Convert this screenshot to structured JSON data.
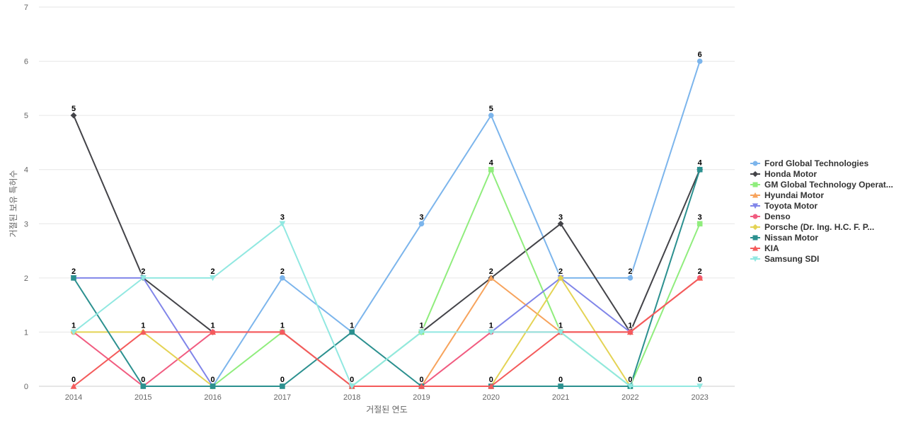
{
  "chart_data": {
    "type": "line",
    "title": "",
    "xlabel": "거절된 연도",
    "ylabel": "거절된 보유 특허수",
    "x": [
      "2014",
      "2015",
      "2016",
      "2017",
      "2018",
      "2019",
      "2020",
      "2021",
      "2022",
      "2023"
    ],
    "ylim": [
      0,
      7
    ],
    "yticks": [
      "0",
      "1",
      "2",
      "3",
      "4",
      "5",
      "6",
      "7"
    ],
    "grid": true,
    "legend_position": "right",
    "series": [
      {
        "name": "Ford Global Technologies",
        "color": "#7cb5ec",
        "marker": "circle",
        "values": [
          null,
          null,
          0,
          2,
          1,
          3,
          5,
          2,
          2,
          6
        ]
      },
      {
        "name": "Honda Motor",
        "color": "#434348",
        "marker": "diamond",
        "values": [
          5,
          2,
          1,
          null,
          null,
          1,
          2,
          3,
          1,
          4
        ]
      },
      {
        "name": "GM Global Technology Operat...",
        "color": "#90ed7d",
        "marker": "square",
        "values": [
          null,
          null,
          0,
          1,
          0,
          1,
          4,
          1,
          0,
          3
        ]
      },
      {
        "name": "Hyundai Motor",
        "color": "#f7a35c",
        "marker": "triangle",
        "values": [
          null,
          null,
          null,
          null,
          null,
          0,
          2,
          1,
          1,
          2
        ]
      },
      {
        "name": "Toyota Motor",
        "color": "#8085e9",
        "marker": "triangle-down",
        "values": [
          2,
          2,
          0,
          null,
          null,
          null,
          1,
          2,
          1,
          null
        ]
      },
      {
        "name": "Denso",
        "color": "#f15c80",
        "marker": "circle",
        "values": [
          1,
          0,
          1,
          1,
          0,
          0,
          1,
          1,
          1,
          2
        ]
      },
      {
        "name": "Porsche (Dr. Ing. H.C. F. P...",
        "color": "#e4d354",
        "marker": "diamond",
        "values": [
          1,
          1,
          0,
          null,
          null,
          null,
          0,
          2,
          0,
          null
        ]
      },
      {
        "name": "Nissan Motor",
        "color": "#2b908f",
        "marker": "square",
        "values": [
          2,
          0,
          0,
          0,
          1,
          0,
          0,
          0,
          0,
          4
        ]
      },
      {
        "name": "KIA",
        "color": "#f45b5b",
        "marker": "triangle",
        "values": [
          0,
          1,
          1,
          1,
          0,
          0,
          0,
          1,
          1,
          2
        ]
      },
      {
        "name": "Samsung SDI",
        "color": "#91e8e1",
        "marker": "triangle-down",
        "values": [
          1,
          2,
          2,
          3,
          0,
          1,
          1,
          1,
          0,
          0
        ]
      }
    ],
    "data_labels": [
      {
        "x": "2014",
        "y": 5,
        "text": "5"
      },
      {
        "x": "2014",
        "y": 2,
        "text": "2"
      },
      {
        "x": "2014",
        "y": 1,
        "text": "1"
      },
      {
        "x": "2014",
        "y": 0,
        "text": "0"
      },
      {
        "x": "2015",
        "y": 2,
        "text": "2"
      },
      {
        "x": "2015",
        "y": 1,
        "text": "1"
      },
      {
        "x": "2015",
        "y": 0,
        "text": "0"
      },
      {
        "x": "2016",
        "y": 2,
        "text": "2"
      },
      {
        "x": "2016",
        "y": 1,
        "text": "1"
      },
      {
        "x": "2016",
        "y": 0,
        "text": "0"
      },
      {
        "x": "2017",
        "y": 3,
        "text": "3"
      },
      {
        "x": "2017",
        "y": 2,
        "text": "2"
      },
      {
        "x": "2017",
        "y": 1,
        "text": "1"
      },
      {
        "x": "2017",
        "y": 0,
        "text": "0"
      },
      {
        "x": "2018",
        "y": 1,
        "text": "1"
      },
      {
        "x": "2018",
        "y": 0,
        "text": "0"
      },
      {
        "x": "2019",
        "y": 3,
        "text": "3"
      },
      {
        "x": "2019",
        "y": 1,
        "text": "1"
      },
      {
        "x": "2019",
        "y": 0,
        "text": "0"
      },
      {
        "x": "2020",
        "y": 5,
        "text": "5"
      },
      {
        "x": "2020",
        "y": 4,
        "text": "4"
      },
      {
        "x": "2020",
        "y": 2,
        "text": "2"
      },
      {
        "x": "2020",
        "y": 1,
        "text": "1"
      },
      {
        "x": "2020",
        "y": 0,
        "text": "0"
      },
      {
        "x": "2021",
        "y": 3,
        "text": "3"
      },
      {
        "x": "2021",
        "y": 2,
        "text": "2"
      },
      {
        "x": "2021",
        "y": 1,
        "text": "1"
      },
      {
        "x": "2021",
        "y": 0,
        "text": "0"
      },
      {
        "x": "2022",
        "y": 2,
        "text": "2"
      },
      {
        "x": "2022",
        "y": 1,
        "text": "1"
      },
      {
        "x": "2022",
        "y": 0,
        "text": "0"
      },
      {
        "x": "2023",
        "y": 6,
        "text": "6"
      },
      {
        "x": "2023",
        "y": 4,
        "text": "4"
      },
      {
        "x": "2023",
        "y": 3,
        "text": "3"
      },
      {
        "x": "2023",
        "y": 2,
        "text": "2"
      },
      {
        "x": "2023",
        "y": 0,
        "text": "0"
      }
    ]
  }
}
